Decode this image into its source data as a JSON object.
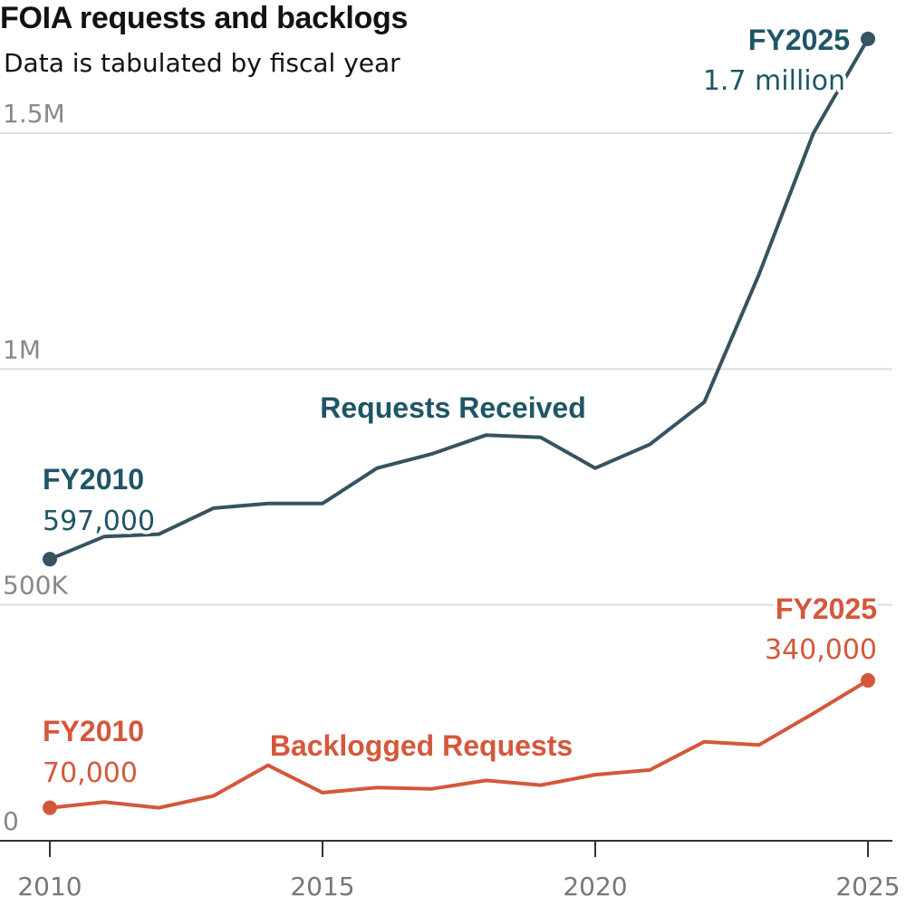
{
  "header": {
    "title": "FOIA requests and backlogs",
    "subtitle": "Data is tabulated by fiscal year"
  },
  "colors": {
    "requests": "#36535f",
    "requests_text": "#1f5566",
    "backlog": "#d5573b",
    "grid": "#dddddd",
    "axis": "#333333"
  },
  "chart_data": {
    "type": "line",
    "title": "FOIA requests and backlogs",
    "subtitle": "Data is tabulated by fiscal year",
    "x": [
      2010,
      2011,
      2012,
      2013,
      2014,
      2015,
      2016,
      2017,
      2018,
      2019,
      2020,
      2021,
      2022,
      2023,
      2024,
      2025
    ],
    "xlim": [
      2010,
      2025
    ],
    "ylim": [
      0,
      1500000
    ],
    "x_ticks": [
      "2010",
      "2015",
      "2020",
      "2025"
    ],
    "y_ticks": [
      "0",
      "500K",
      "1M",
      "1.5M"
    ],
    "grid": true,
    "series": [
      {
        "name": "Requests Received",
        "color": "#36535f",
        "values": [
          597000,
          645000,
          650000,
          705000,
          715000,
          715000,
          790000,
          820000,
          860000,
          855000,
          790000,
          840000,
          930000,
          1200000,
          1500000,
          1700000
        ],
        "start_label": "FY2010",
        "start_value_label": "597,000",
        "end_label": "FY2025",
        "end_value_label": "1.7 million"
      },
      {
        "name": "Backlogged Requests",
        "color": "#d5573b",
        "values": [
          70000,
          82000,
          70000,
          95000,
          160000,
          102000,
          113000,
          110000,
          128000,
          118000,
          140000,
          150000,
          210000,
          203000,
          270000,
          340000
        ],
        "start_label": "FY2010",
        "start_value_label": "70,000",
        "end_label": "FY2025",
        "end_value_label": "340,000"
      }
    ]
  }
}
